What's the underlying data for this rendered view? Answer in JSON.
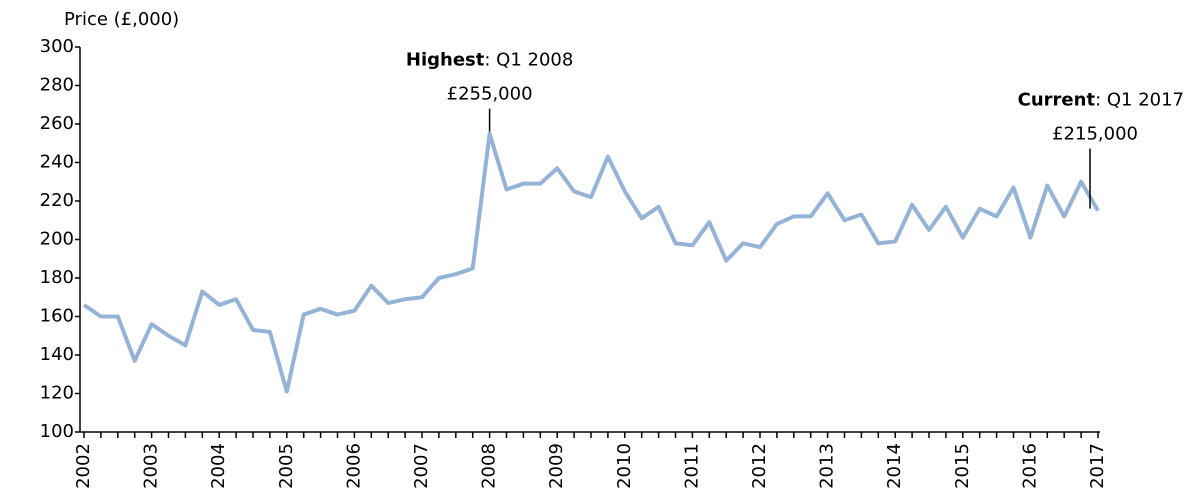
{
  "chart_data": {
    "type": "line",
    "y_label": "Price (£,000)",
    "categories": [
      "2002",
      null,
      null,
      null,
      "2003",
      null,
      null,
      null,
      "2004",
      null,
      null,
      null,
      "2005",
      null,
      null,
      null,
      "2006",
      null,
      null,
      null,
      "2007",
      null,
      null,
      null,
      "2008",
      null,
      null,
      null,
      "2009",
      null,
      null,
      null,
      "2010",
      null,
      null,
      null,
      "2011",
      null,
      null,
      null,
      "2012",
      null,
      null,
      null,
      "2013",
      null,
      null,
      null,
      "2014",
      null,
      null,
      null,
      "2015",
      null,
      null,
      null,
      "2016",
      null,
      null,
      null,
      "2017"
    ],
    "series": [
      {
        "name": "Price",
        "color": "#95b3d7",
        "values": [
          166,
          160,
          160,
          137,
          156,
          150,
          145,
          173,
          166,
          169,
          153,
          152,
          121,
          161,
          164,
          161,
          163,
          176,
          167,
          169,
          170,
          180,
          182,
          185,
          255,
          226,
          229,
          229,
          237,
          225,
          222,
          243,
          225,
          211,
          217,
          198,
          197,
          209,
          189,
          198,
          196,
          208,
          212,
          212,
          224,
          210,
          213,
          198,
          199,
          218,
          205,
          217,
          201,
          216,
          212,
          227,
          201,
          228,
          212,
          230,
          215
        ]
      }
    ],
    "ylim": [
      100,
      300
    ],
    "yticks": [
      100,
      120,
      140,
      160,
      180,
      200,
      220,
      240,
      260,
      280,
      300
    ],
    "annotations": [
      {
        "label": "Highest",
        "text": ": Q1 2008",
        "value_label": "£255,000"
      },
      {
        "label": "Current",
        "text": ": Q1 2017",
        "value_label": "£215,000"
      }
    ]
  }
}
